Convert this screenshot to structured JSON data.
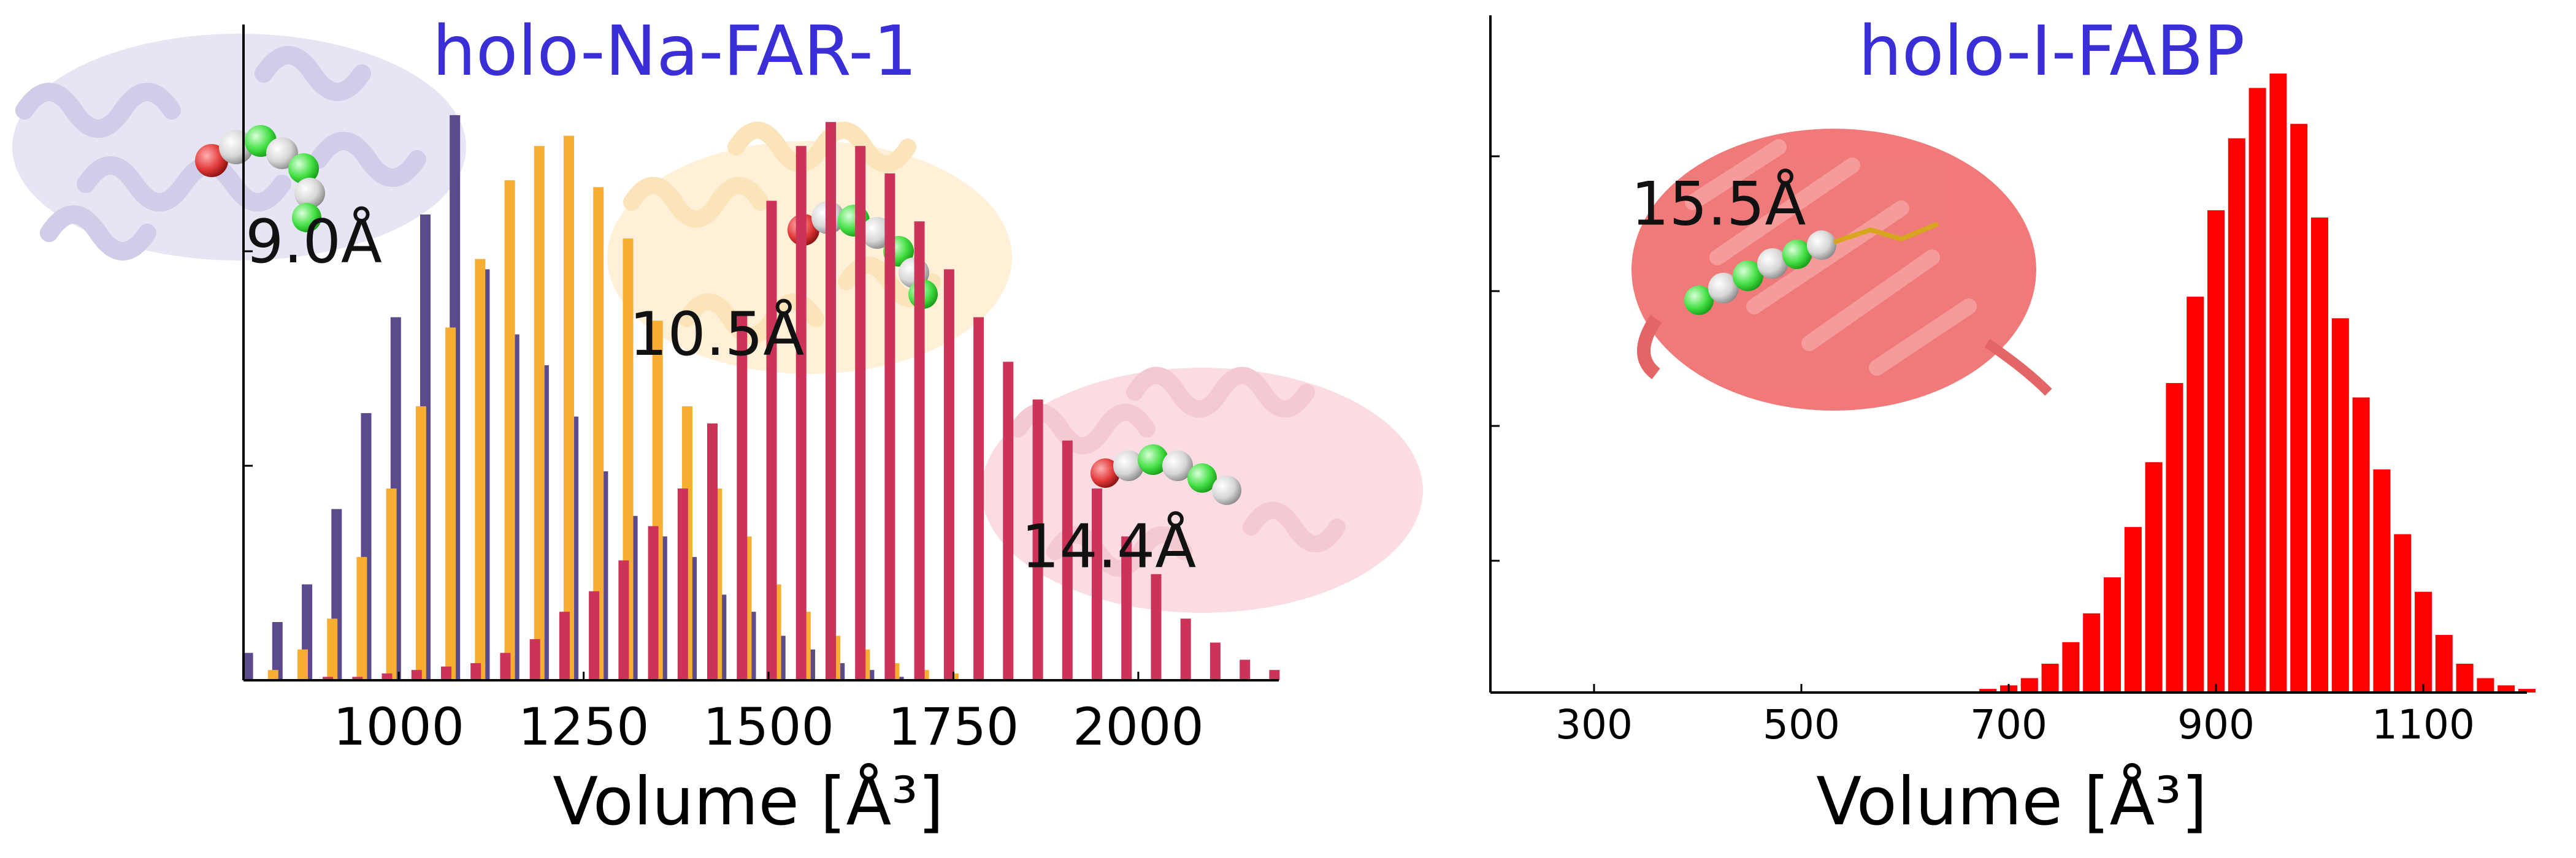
{
  "chart_data": [
    {
      "type": "bar",
      "title": "holo-Na-FAR-1",
      "xlabel": "Volume [Å³]",
      "ylabel": "",
      "xlim": [
        790,
        2190
      ],
      "x_ticks": [
        1000,
        1250,
        1500,
        1750,
        2000
      ],
      "grid": false,
      "colors": {
        "title": "#3a2fd6",
        "series": [
          "#5b4a8c",
          "#f8ae33",
          "#cc3359"
        ]
      },
      "series": [
        {
          "x": [
            810,
            850,
            890,
            930,
            970,
            1010,
            1050,
            1090,
            1130,
            1170,
            1210,
            1250,
            1290,
            1330,
            1370,
            1410,
            1450,
            1490,
            1530,
            1570,
            1610,
            1650,
            1690
          ],
          "values": [
            8,
            17,
            28,
            50,
            78,
            106,
            136,
            165,
            120,
            101,
            92,
            77,
            61,
            48,
            42,
            36,
            25,
            20,
            13,
            9,
            5,
            3,
            1
          ]
        },
        {
          "x": [
            830,
            870,
            910,
            950,
            990,
            1030,
            1070,
            1110,
            1150,
            1190,
            1230,
            1270,
            1310,
            1350,
            1390,
            1430,
            1470,
            1510,
            1550,
            1590,
            1630,
            1670,
            1710,
            1750
          ],
          "values": [
            3,
            9,
            18,
            36,
            56,
            80,
            103,
            123,
            146,
            156,
            159,
            144,
            129,
            105,
            80,
            56,
            42,
            28,
            20,
            13,
            9,
            5,
            3,
            2
          ]
        },
        {
          "x": [
            850,
            890,
            930,
            970,
            1010,
            1050,
            1090,
            1130,
            1170,
            1210,
            1250,
            1290,
            1330,
            1370,
            1410,
            1450,
            1490,
            1530,
            1570,
            1610,
            1650,
            1690,
            1730,
            1770,
            1810,
            1850,
            1890,
            1930,
            1970,
            2010,
            2050,
            2090,
            2130,
            2170
          ],
          "values": [
            0,
            1,
            1,
            2,
            3,
            4,
            5,
            8,
            12,
            20,
            26,
            35,
            45,
            56,
            75,
            107,
            140,
            156,
            163,
            156,
            148,
            134,
            120,
            106,
            93,
            82,
            70,
            56,
            42,
            31,
            18,
            11,
            6,
            3
          ]
        }
      ],
      "annotations": [
        {
          "text": "9.0Å",
          "x": 885,
          "y": 122
        },
        {
          "text": "10.5Å",
          "x": 1430,
          "y": 95
        },
        {
          "text": "14.4Å",
          "x": 1960,
          "y": 33
        }
      ]
    },
    {
      "type": "bar",
      "title": "holo-I-FABP",
      "xlabel": "Volume [Å³]",
      "ylabel": "",
      "xlim": [
        200,
        1200
      ],
      "x_ticks": [
        300,
        500,
        700,
        900,
        1100
      ],
      "grid": false,
      "colors": {
        "title": "#3a2fd6",
        "series": [
          "#ff0000"
        ]
      },
      "series": [
        {
          "x": [
            680,
            700,
            720,
            740,
            760,
            780,
            800,
            820,
            840,
            860,
            880,
            900,
            920,
            940,
            960,
            980,
            1000,
            1020,
            1040,
            1060,
            1080,
            1100,
            1120,
            1140,
            1160,
            1180,
            1200
          ],
          "values": [
            0.005,
            0.01,
            0.02,
            0.04,
            0.07,
            0.11,
            0.16,
            0.23,
            0.32,
            0.43,
            0.55,
            0.67,
            0.77,
            0.84,
            0.86,
            0.79,
            0.66,
            0.52,
            0.41,
            0.31,
            0.22,
            0.14,
            0.08,
            0.04,
            0.02,
            0.01,
            0.005
          ]
        }
      ],
      "annotations": [
        {
          "text": "15.5Å",
          "x": 420,
          "y": 0.65
        }
      ]
    }
  ]
}
